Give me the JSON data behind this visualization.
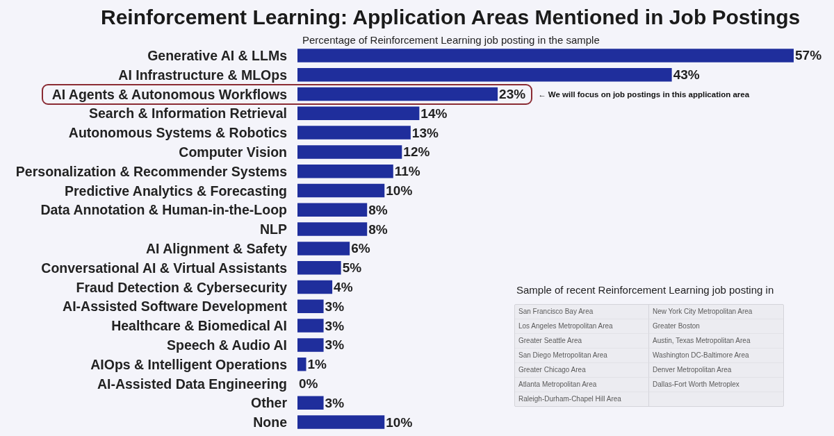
{
  "chart_data": [
    {
      "type": "bar",
      "orientation": "horizontal",
      "title": "Reinforcement Learning: Application Areas Mentioned in Job Postings",
      "subtitle": "Percentage of Reinforcement Learning job posting in the sample",
      "categories": [
        "Generative AI & LLMs",
        "AI Infrastructure & MLOps",
        "AI Agents & Autonomous Workflows",
        "Search & Information Retrieval",
        "Autonomous Systems & Robotics",
        "Computer Vision",
        "Personalization & Recommender Systems",
        "Predictive Analytics & Forecasting",
        "Data Annotation & Human-in-the-Loop",
        "NLP",
        "AI Alignment & Safety",
        "Conversational AI & Virtual Assistants",
        "Fraud Detection & Cybersecurity",
        "AI-Assisted Software Development",
        "Healthcare & Biomedical AI",
        "Speech & Audio AI",
        "AIOps & Intelligent Operations",
        "AI-Assisted Data Engineering",
        "Other",
        "None"
      ],
      "values": [
        57,
        43,
        23,
        14,
        13,
        12,
        11,
        10,
        8,
        8,
        6,
        5,
        4,
        3,
        3,
        3,
        1,
        0,
        3,
        10
      ],
      "value_labels": [
        "57%",
        "43%",
        "23%",
        "14%",
        "13%",
        "12%",
        "11%",
        "10%",
        "8%",
        "8%",
        "6%",
        "5%",
        "4%",
        "3%",
        "3%",
        "3%",
        "1%",
        "0%",
        "3%",
        "10%"
      ],
      "color": "#1f2e9c",
      "tick_labels": "y",
      "annotations": [
        "← We will focus on job postings in this application area"
      ]
    },
    {
      "type": "other",
      "title": "Sample of recent Reinforcement Learning job posting in",
      "annotations": [
        "San Francisco Bay Area",
        "New York City Metropolitan Area",
        "Los Angeles Metropolitan Area",
        "Greater Boston",
        "Greater Seattle Area",
        "Austin, Texas Metropolitan Area",
        "San Diego Metropolitan Area",
        "Washington DC-Baltimore Area",
        "Greater Chicago Area",
        "Denver Metropolitan Area",
        "Atlanta Metropolitan Area",
        "Dallas-Fort Worth Metroplex",
        "Raleigh-Durham-Chapel Hill Area"
      ]
    }
  ]
}
